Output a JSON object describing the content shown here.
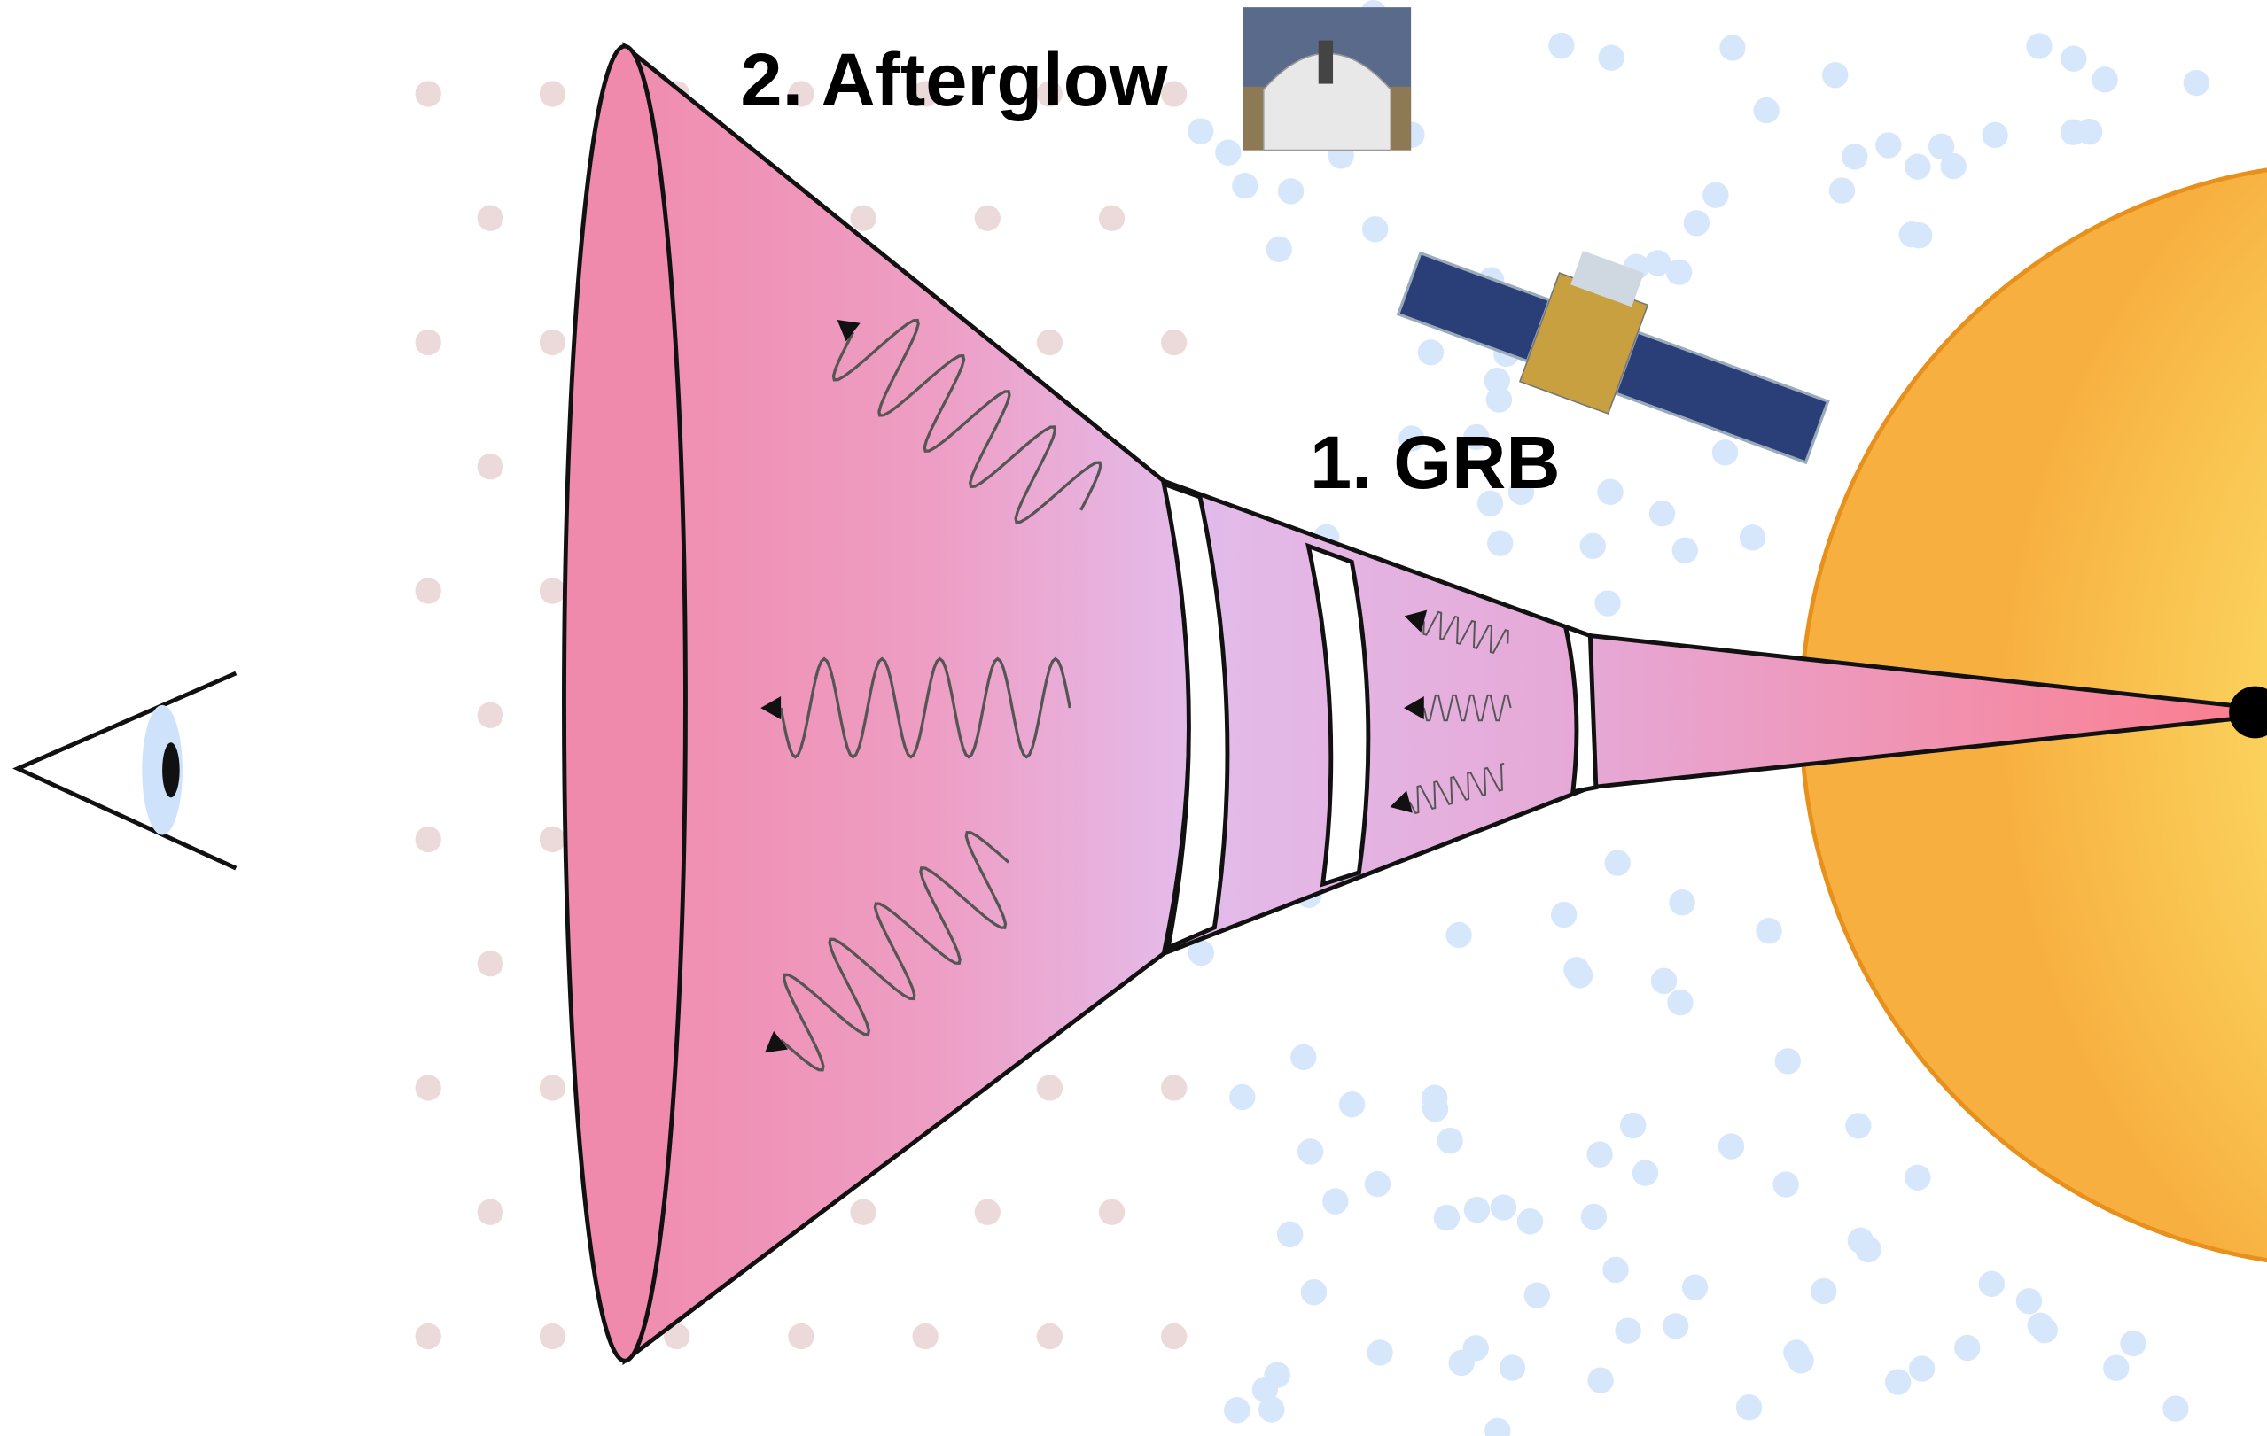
{
  "labels": {
    "afterglow": "2. Afterglow",
    "grb": "1. GRB"
  }
}
